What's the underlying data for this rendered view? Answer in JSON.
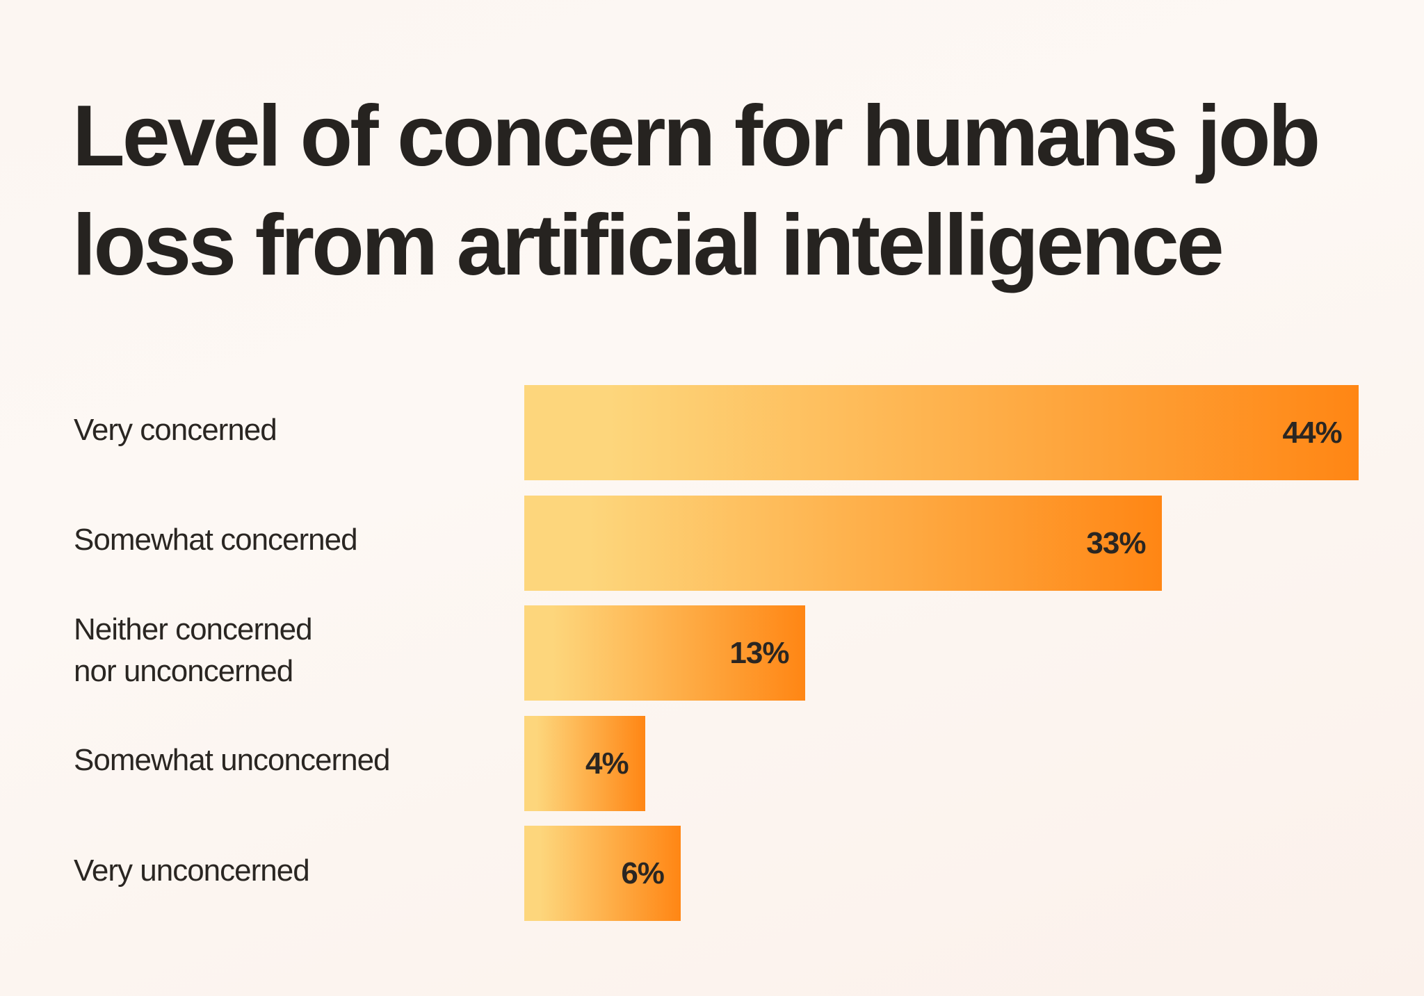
{
  "chart_data": {
    "type": "bar",
    "orientation": "horizontal",
    "title": "Level of concern for humans job loss from artificial intelligence",
    "categories": [
      "Very concerned",
      "Somewhat concerned",
      "Neither concerned\nnor unconcerned",
      "Somewhat unconcerned",
      "Very unconcerned"
    ],
    "values": [
      44,
      33,
      13,
      4,
      6
    ],
    "value_labels": [
      "44%",
      "33%",
      "13%",
      "4%",
      "6%"
    ],
    "xlabel": "",
    "ylabel": "",
    "grid": false,
    "colors": {
      "gradient_start": "#fdd67c",
      "gradient_end": "#ff8614",
      "text": "#2a2622"
    }
  }
}
